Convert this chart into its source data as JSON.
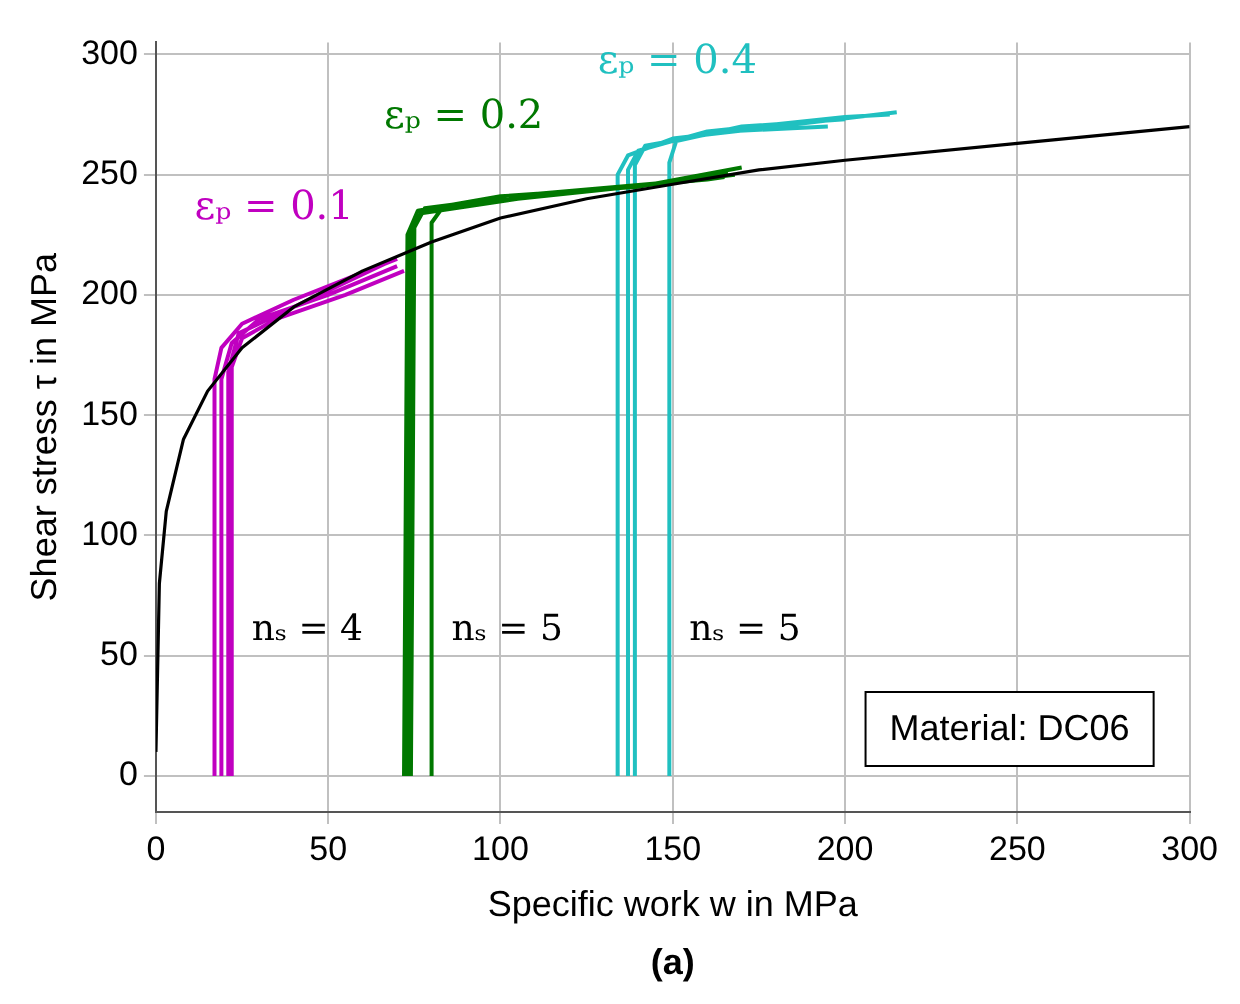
{
  "chart_data": {
    "type": "line",
    "xlabel": "Specific work w in MPa",
    "ylabel": "Shear stress τ in MPa",
    "xlim": [
      0,
      300
    ],
    "ylim": [
      -15,
      305
    ],
    "xticks": [
      0,
      50,
      100,
      150,
      200,
      250,
      300
    ],
    "yticks": [
      0,
      50,
      100,
      150,
      200,
      250,
      300
    ],
    "grid": true,
    "legend": false,
    "marker": "none",
    "series": [
      {
        "color": "#000000",
        "x": [
          0,
          1,
          3,
          8,
          15,
          25,
          40,
          60,
          80,
          100,
          125,
          150,
          175,
          200,
          250,
          300
        ],
        "values": [
          10,
          80,
          110,
          140,
          160,
          178,
          195,
          210,
          222,
          232,
          240,
          246,
          252,
          256,
          263,
          270
        ]
      },
      {
        "name": "εₚ = 0.1",
        "color": "#c000c0",
        "x": [
          17,
          17,
          19,
          25,
          40,
          70,
          null,
          19,
          19,
          22,
          30,
          50,
          70,
          null,
          22,
          22,
          25,
          35,
          55,
          72,
          null,
          21,
          21,
          24,
          40,
          68
        ],
        "values": [
          0,
          165,
          178,
          188,
          198,
          215,
          null,
          0,
          165,
          180,
          190,
          200,
          212,
          null,
          0,
          170,
          182,
          190,
          200,
          210,
          null,
          0,
          168,
          184,
          195,
          214
        ]
      },
      {
        "name": "εₚ = 0.2",
        "color": "#007800",
        "x": [
          72,
          73,
          76,
          100,
          140,
          170,
          null,
          74,
          75,
          78,
          110,
          150,
          168,
          null,
          80,
          80,
          83,
          120,
          160,
          165,
          null,
          73,
          74,
          77,
          105,
          145,
          166
        ],
        "values": [
          0,
          225,
          235,
          241,
          245,
          253,
          null,
          0,
          228,
          236,
          242,
          247,
          250,
          null,
          0,
          230,
          236,
          243,
          248,
          249,
          null,
          0,
          226,
          234,
          240,
          246,
          251
        ]
      },
      {
        "name": "εₚ = 0.4",
        "color": "#20c0c0",
        "x": [
          134,
          134,
          137,
          150,
          180,
          215,
          null,
          137,
          137,
          140,
          160,
          200,
          213,
          null,
          139,
          139,
          142,
          165,
          195,
          null,
          149,
          149,
          151,
          170,
          200
        ],
        "values": [
          0,
          250,
          258,
          265,
          270,
          276,
          null,
          0,
          252,
          260,
          268,
          274,
          275,
          null,
          0,
          254,
          262,
          268,
          270,
          null,
          0,
          255,
          264,
          270,
          273
        ]
      }
    ],
    "annotations": [
      "nₛ = 4",
      "nₛ = 5",
      "nₛ = 5",
      "Material: DC06",
      "(a)"
    ]
  }
}
